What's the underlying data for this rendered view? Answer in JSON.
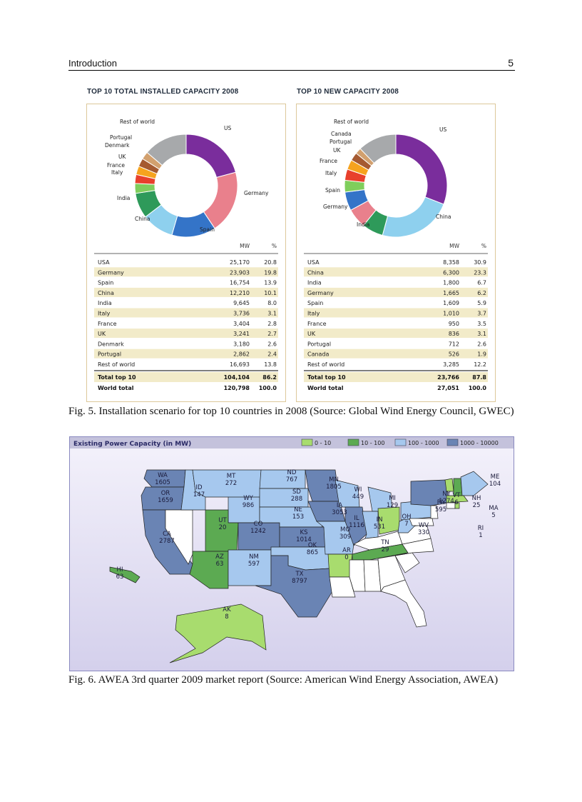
{
  "header": {
    "section": "Introduction",
    "page_number": "5"
  },
  "figure5": {
    "caption": "Fig. 5. Installation scenario for top 10 countries in 2008 (Source: Global Wind Energy Council, GWEC)",
    "col_mw": "MW",
    "col_pct": "%",
    "colors": {
      "purple": "#7a2d9c",
      "pink": "#e9808c",
      "blue": "#3474c8",
      "lightblue": "#8ed0ee",
      "green": "#2e9a5a",
      "lightgreen": "#7fce5c",
      "red": "#e8402c",
      "orange": "#f6a31e",
      "yellow": "#f7cc2e",
      "brown": "#a55a31",
      "tan": "#d2a06e",
      "grey": "#a7a9ab",
      "rowshade": "#f2ebc9"
    },
    "installed": {
      "title": "TOP 10 TOTAL INSTALLED CAPACITY 2008",
      "rows": [
        {
          "country": "USA",
          "mw": "25,170",
          "pct": "20.8"
        },
        {
          "country": "Germany",
          "mw": "23,903",
          "pct": "19.8"
        },
        {
          "country": "Spain",
          "mw": "16,754",
          "pct": "13.9"
        },
        {
          "country": "China",
          "mw": "12,210",
          "pct": "10.1"
        },
        {
          "country": "India",
          "mw": "9,645",
          "pct": "8.0"
        },
        {
          "country": "Italy",
          "mw": "3,736",
          "pct": "3.1"
        },
        {
          "country": "France",
          "mw": "3,404",
          "pct": "2.8"
        },
        {
          "country": "UK",
          "mw": "3,241",
          "pct": "2.7"
        },
        {
          "country": "Denmark",
          "mw": "3,180",
          "pct": "2.6"
        },
        {
          "country": "Portugal",
          "mw": "2,862",
          "pct": "2.4"
        },
        {
          "country": "Rest of world",
          "mw": "16,693",
          "pct": "13.8"
        }
      ],
      "total_top10": {
        "label": "Total top 10",
        "mw": "104,104",
        "pct": "86.2"
      },
      "world_total": {
        "label": "World total",
        "mw": "120,798",
        "pct": "100.0"
      }
    },
    "new": {
      "title": "TOP 10 NEW CAPACITY 2008",
      "rows": [
        {
          "country": "USA",
          "mw": "8,358",
          "pct": "30.9"
        },
        {
          "country": "China",
          "mw": "6,300",
          "pct": "23.3"
        },
        {
          "country": "India",
          "mw": "1,800",
          "pct": "6.7"
        },
        {
          "country": "Germany",
          "mw": "1,665",
          "pct": "6.2"
        },
        {
          "country": "Spain",
          "mw": "1,609",
          "pct": "5.9"
        },
        {
          "country": "Italy",
          "mw": "1,010",
          "pct": "3.7"
        },
        {
          "country": "France",
          "mw": "950",
          "pct": "3.5"
        },
        {
          "country": "UK",
          "mw": "836",
          "pct": "3.1"
        },
        {
          "country": "Portugal",
          "mw": "712",
          "pct": "2.6"
        },
        {
          "country": "Canada",
          "mw": "526",
          "pct": "1.9"
        },
        {
          "country": "Rest of world",
          "mw": "3,285",
          "pct": "12.2"
        }
      ],
      "total_top10": {
        "label": "Total top 10",
        "mw": "23,766",
        "pct": "87.8"
      },
      "world_total": {
        "label": "World total",
        "mw": "27,051",
        "pct": "100.0"
      }
    }
  },
  "chart_data": [
    {
      "type": "pie",
      "title": "TOP 10 TOTAL INSTALLED CAPACITY 2008",
      "categories": [
        "US",
        "Germany",
        "Spain",
        "China",
        "India",
        "Italy",
        "France",
        "UK",
        "Denmark",
        "Portugal",
        "Rest of world"
      ],
      "values": [
        20.8,
        19.8,
        13.9,
        10.1,
        8.0,
        3.1,
        2.8,
        2.7,
        2.6,
        2.4,
        13.8
      ],
      "colors": [
        "#7a2d9c",
        "#e9808c",
        "#3474c8",
        "#8ed0ee",
        "#2e9a5a",
        "#7fce5c",
        "#e8402c",
        "#f6a31e",
        "#a55a31",
        "#d2a06e",
        "#a7a9ab"
      ]
    },
    {
      "type": "pie",
      "title": "TOP 10 NEW CAPACITY 2008",
      "categories": [
        "US",
        "China",
        "India",
        "Germany",
        "Spain",
        "Italy",
        "France",
        "UK",
        "Portugal",
        "Canada",
        "Rest of world"
      ],
      "values": [
        30.9,
        23.3,
        6.7,
        6.2,
        5.9,
        3.7,
        3.5,
        3.1,
        2.6,
        1.9,
        12.2
      ],
      "colors": [
        "#7a2d9c",
        "#8ed0ee",
        "#2e9a5a",
        "#e9808c",
        "#3474c8",
        "#7fce5c",
        "#e8402c",
        "#f6a31e",
        "#a55a31",
        "#d2a06e",
        "#a7a9ab"
      ]
    }
  ],
  "figure6": {
    "caption": "Fig. 6. AWEA 3rd quarter 2009 market report (Source: American Wind Energy Association, AWEA)",
    "map_title": "Existing Power Capacity (in MW)",
    "legend": [
      {
        "label": "0 - 10",
        "color": "#a8dc6e"
      },
      {
        "label": "10 - 100",
        "color": "#5caa52"
      },
      {
        "label": "100 - 1000",
        "color": "#a6c8ee"
      },
      {
        "label": "1000 - 10000",
        "color": "#6a84b4"
      }
    ],
    "states": [
      {
        "abbr": "WA",
        "mw": "1605",
        "fill": "#6a84b4"
      },
      {
        "abbr": "OR",
        "mw": "1659",
        "fill": "#6a84b4"
      },
      {
        "abbr": "CA",
        "mw": "2787",
        "fill": "#6a84b4"
      },
      {
        "abbr": "ID",
        "mw": "147",
        "fill": "#a6c8ee"
      },
      {
        "abbr": "MT",
        "mw": "272",
        "fill": "#a6c8ee"
      },
      {
        "abbr": "WY",
        "mw": "986",
        "fill": "#a6c8ee"
      },
      {
        "abbr": "UT",
        "mw": "20",
        "fill": "#5caa52"
      },
      {
        "abbr": "AZ",
        "mw": "63",
        "fill": "#5caa52"
      },
      {
        "abbr": "CO",
        "mw": "1242",
        "fill": "#6a84b4"
      },
      {
        "abbr": "NM",
        "mw": "597",
        "fill": "#a6c8ee"
      },
      {
        "abbr": "ND",
        "mw": "767",
        "fill": "#a6c8ee"
      },
      {
        "abbr": "SD",
        "mw": "288",
        "fill": "#a6c8ee"
      },
      {
        "abbr": "NE",
        "mw": "153",
        "fill": "#a6c8ee"
      },
      {
        "abbr": "KS",
        "mw": "1014",
        "fill": "#6a84b4"
      },
      {
        "abbr": "OK",
        "mw": "865",
        "fill": "#a6c8ee"
      },
      {
        "abbr": "TX",
        "mw": "8797",
        "fill": "#6a84b4"
      },
      {
        "abbr": "MN",
        "mw": "1805",
        "fill": "#6a84b4"
      },
      {
        "abbr": "IA",
        "mw": "3053",
        "fill": "#6a84b4"
      },
      {
        "abbr": "MO",
        "mw": "309",
        "fill": "#a6c8ee"
      },
      {
        "abbr": "AR",
        "mw": "0",
        "fill": "#a8dc6e"
      },
      {
        "abbr": "WI",
        "mw": "449",
        "fill": "#a6c8ee"
      },
      {
        "abbr": "IL",
        "mw": "1116",
        "fill": "#6a84b4"
      },
      {
        "abbr": "IN",
        "mw": "531",
        "fill": "#a6c8ee"
      },
      {
        "abbr": "MI",
        "mw": "129",
        "fill": "#a6c8ee"
      },
      {
        "abbr": "OH",
        "mw": "7",
        "fill": "#a8dc6e"
      },
      {
        "abbr": "TN",
        "mw": "29",
        "fill": "#5caa52"
      },
      {
        "abbr": "WV",
        "mw": "330",
        "fill": "#a6c8ee"
      },
      {
        "abbr": "PA",
        "mw": "595",
        "fill": "#a6c8ee"
      },
      {
        "abbr": "NY",
        "mw": "1274",
        "fill": "#6a84b4"
      },
      {
        "abbr": "VT",
        "mw": "6",
        "fill": "#a8dc6e"
      },
      {
        "abbr": "NH",
        "mw": "25",
        "fill": "#5caa52"
      },
      {
        "abbr": "ME",
        "mw": "104",
        "fill": "#a6c8ee"
      },
      {
        "abbr": "MA",
        "mw": "5",
        "fill": "#a8dc6e"
      },
      {
        "abbr": "RI",
        "mw": "1",
        "fill": "#a8dc6e"
      },
      {
        "abbr": "HI",
        "mw": "63",
        "fill": "#5caa52"
      },
      {
        "abbr": "AK",
        "mw": "8",
        "fill": "#a8dc6e"
      }
    ]
  }
}
